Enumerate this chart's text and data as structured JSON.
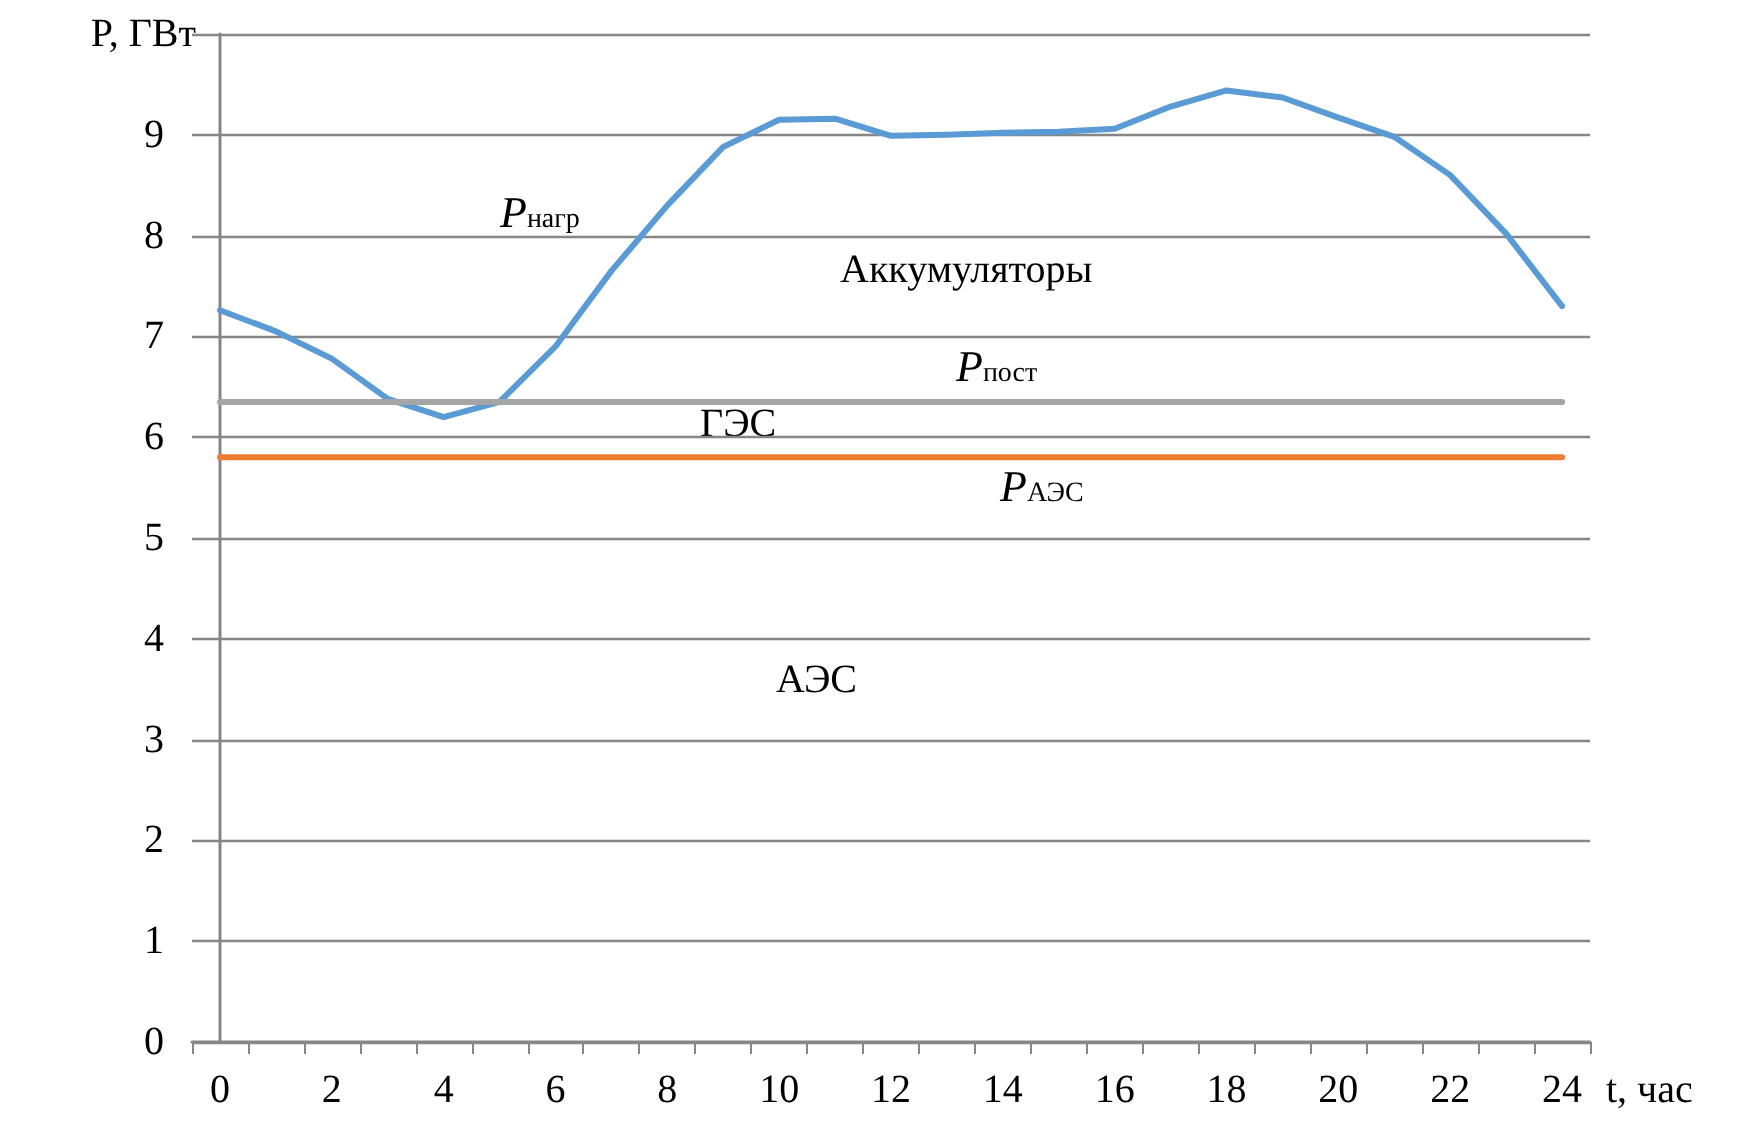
{
  "chart_data": {
    "type": "line",
    "xlabel": "t, час",
    "ylabel": "P, ГВт",
    "x": [
      0,
      1,
      2,
      3,
      4,
      5,
      6,
      7,
      8,
      9,
      10,
      11,
      12,
      13,
      14,
      15,
      16,
      17,
      18,
      19,
      20,
      21,
      22,
      23,
      24
    ],
    "xlim": [
      -0.5,
      24.5
    ],
    "xticks": [
      0,
      2,
      4,
      6,
      8,
      10,
      12,
      14,
      16,
      18,
      20,
      22,
      24,
      {
        "value": -0.5,
        "label": null
      },
      {
        "value": 0.5,
        "label": null
      },
      {
        "value": 1.5,
        "label": null
      },
      {
        "value": 2.5,
        "label": null
      },
      {
        "value": 3.5,
        "label": null
      },
      {
        "value": 4.5,
        "label": null
      },
      {
        "value": 5.5,
        "label": null
      },
      {
        "value": 6.5,
        "label": null
      },
      {
        "value": 7.5,
        "label": null
      },
      {
        "value": 8.5,
        "label": null
      },
      {
        "value": 9.5,
        "label": null
      },
      {
        "value": 10.5,
        "label": null
      },
      {
        "value": 11.5,
        "label": null
      },
      {
        "value": 12.5,
        "label": null
      },
      {
        "value": 13.5,
        "label": null
      },
      {
        "value": 14.5,
        "label": null
      },
      {
        "value": 15.5,
        "label": null
      },
      {
        "value": 16.5,
        "label": null
      },
      {
        "value": 17.5,
        "label": null
      },
      {
        "value": 18.5,
        "label": null
      },
      {
        "value": 19.5,
        "label": null
      },
      {
        "value": 20.5,
        "label": null
      },
      {
        "value": 21.5,
        "label": null
      },
      {
        "value": 22.5,
        "label": null
      },
      {
        "value": 23.5,
        "label": null
      },
      {
        "value": 24.5,
        "label": null
      }
    ],
    "series": [
      {
        "color": "#5b9bd5",
        "values": [
          7.26,
          7.05,
          6.78,
          6.38,
          6.2,
          6.35,
          6.9,
          7.65,
          8.3,
          8.88,
          9.15,
          9.16,
          8.99,
          9.0,
          9.02,
          9.03,
          9.06,
          9.28,
          9.44,
          9.37,
          9.17,
          8.98,
          8.6,
          8.02,
          7.3
        ]
      },
      {
        "color": "#a5a5a5",
        "values": [
          6.35,
          6.35,
          6.35,
          6.35,
          6.35,
          6.35,
          6.35,
          6.35,
          6.35,
          6.35,
          6.35,
          6.35,
          6.35,
          6.35,
          6.35,
          6.35,
          6.35,
          6.35,
          6.35,
          6.35,
          6.35,
          6.35,
          6.35,
          6.35,
          6.35
        ]
      },
      {
        "color": "#ed7d31",
        "values": [
          5.8,
          5.8,
          5.8,
          5.8,
          5.8,
          5.8,
          5.8,
          5.8,
          5.8,
          5.8,
          5.8,
          5.8,
          5.8,
          5.8,
          5.8,
          5.8,
          5.8,
          5.8,
          5.8,
          5.8,
          5.8,
          5.8,
          5.8,
          5.8,
          5.8
        ]
      }
    ],
    "ylim": [
      0,
      10
    ],
    "yticks": [
      0,
      1,
      2,
      3,
      4,
      5,
      6,
      7,
      8,
      9,
      {
        "value": 10,
        "label": null
      }
    ],
    "grid": "y",
    "marker": "none",
    "line_style": "solid",
    "annotations": [
      "P$_{нагр}$",
      "Аккумуляторы",
      "P$_{пост}$",
      "ГЭС",
      "P$_{АЭС}$",
      "АЭС"
    ]
  }
}
